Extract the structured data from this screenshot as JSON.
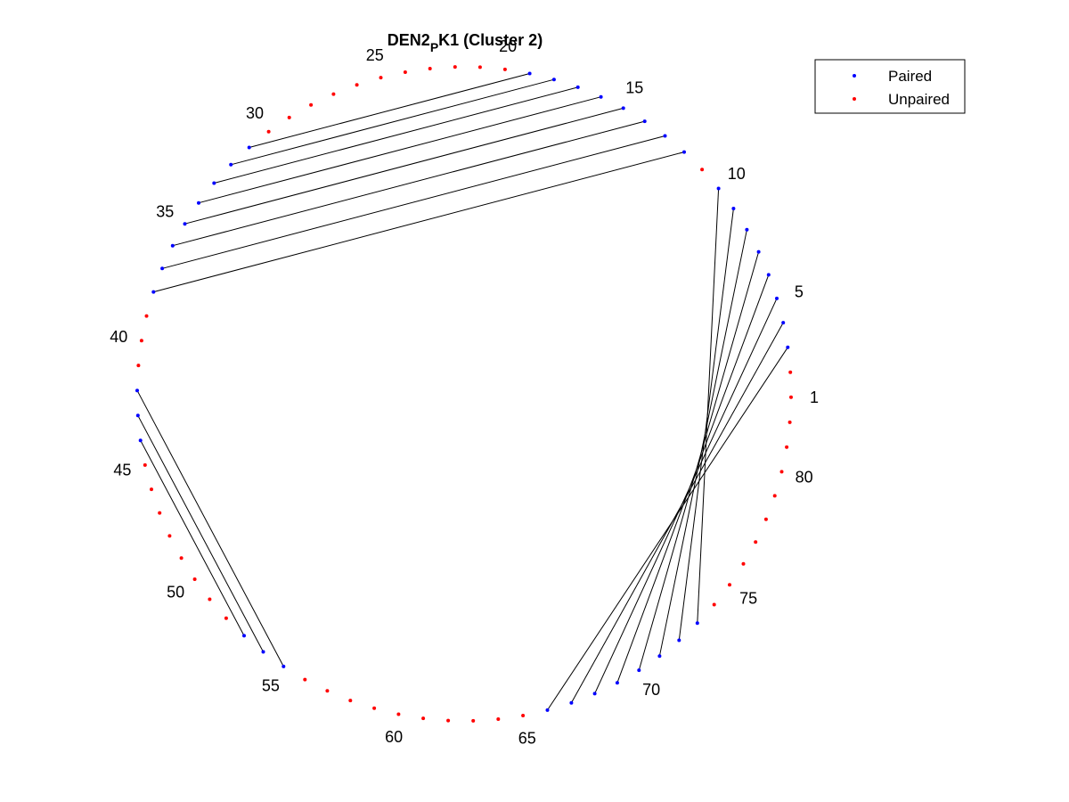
{
  "figure": {
    "title_main": "DEN2",
    "title_sub": "P",
    "title_rest": "K1 (Cluster 2)"
  },
  "legend": {
    "items": [
      {
        "label": "Paired",
        "color": "#0000ff"
      },
      {
        "label": "Unpaired",
        "color": "#ff0000"
      }
    ]
  },
  "chart_data": {
    "type": "arc-diagram",
    "sequence_length": 82,
    "start_position": 1,
    "direction": "counterclockwise",
    "position_labels": [
      1,
      5,
      10,
      15,
      20,
      25,
      30,
      35,
      40,
      45,
      50,
      55,
      60,
      65,
      70,
      75,
      80
    ],
    "pairs": [
      [
        3,
        66
      ],
      [
        4,
        67
      ],
      [
        5,
        68
      ],
      [
        6,
        69
      ],
      [
        7,
        70
      ],
      [
        8,
        71
      ],
      [
        9,
        72
      ],
      [
        10,
        73
      ],
      [
        12,
        38
      ],
      [
        13,
        37
      ],
      [
        14,
        36
      ],
      [
        15,
        35
      ],
      [
        16,
        34
      ],
      [
        17,
        33
      ],
      [
        18,
        32
      ],
      [
        19,
        31
      ],
      [
        42,
        55
      ],
      [
        43,
        54
      ],
      [
        44,
        53
      ]
    ],
    "colors": {
      "paired": "#0000ff",
      "unpaired": "#ff0000",
      "link": "#000000"
    }
  }
}
